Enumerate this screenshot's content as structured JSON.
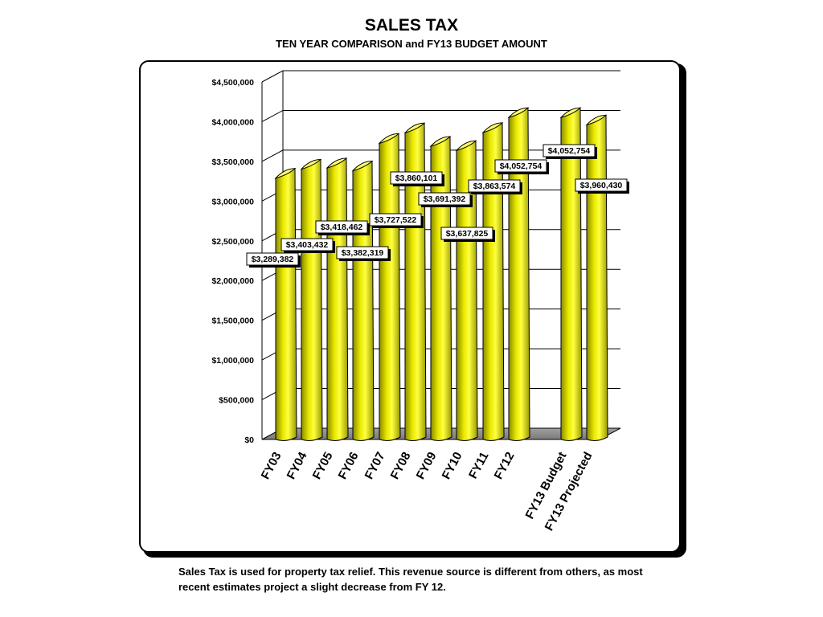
{
  "header": {
    "title": "SALES TAX",
    "subtitle": "TEN YEAR COMPARISON and FY13 BUDGET AMOUNT"
  },
  "footnote": "Sales Tax is used for property tax relief.  This revenue source is different from others, as most recent estimates project a slight decrease from FY 12.",
  "chart_data": {
    "type": "bar",
    "style": "3d-cylinder",
    "bar_color": "#e8e800",
    "floor_color": "#8c8c8c",
    "grid": true,
    "legend": "none",
    "ylim": [
      0,
      4500000
    ],
    "y_ticks": [
      {
        "value": 0,
        "label": "$0"
      },
      {
        "value": 500000,
        "label": "$500,000"
      },
      {
        "value": 1000000,
        "label": "$1,000,000"
      },
      {
        "value": 1500000,
        "label": "$1,500,000"
      },
      {
        "value": 2000000,
        "label": "$2,000,000"
      },
      {
        "value": 2500000,
        "label": "$2,500,000"
      },
      {
        "value": 3000000,
        "label": "$3,000,000"
      },
      {
        "value": 3500000,
        "label": "$3,500,000"
      },
      {
        "value": 4000000,
        "label": "$4,000,000"
      },
      {
        "value": 4500000,
        "label": "$4,500,000"
      }
    ],
    "categories": [
      "FY03",
      "FY04",
      "FY05",
      "FY06",
      "FY07",
      "FY08",
      "FY09",
      "FY10",
      "FY11",
      "FY12",
      "FY13 Budget",
      "FY13 Projected"
    ],
    "values": [
      3289382,
      3403432,
      3418462,
      3382319,
      3727522,
      3860101,
      3691392,
      3637825,
      3863574,
      4052754,
      4052754,
      3960430
    ],
    "data_labels": [
      "$3,289,382",
      "$3,403,432",
      "$3,418,462",
      "$3,382,319",
      "$3,727,522",
      "$3,860,101",
      "$3,691,392",
      "$3,637,825",
      "$3,863,574",
      "$4,052,754",
      "$4,052,754",
      "$3,960,430"
    ]
  }
}
